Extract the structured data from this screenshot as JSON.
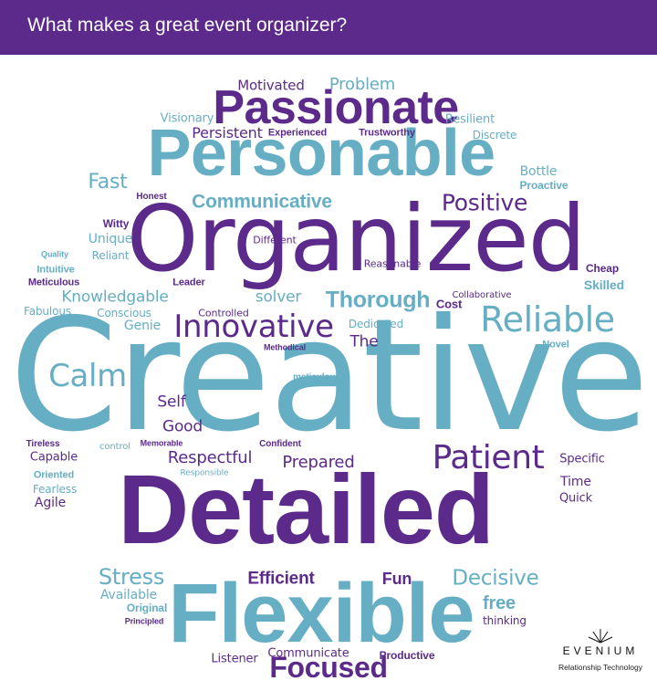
{
  "header": {
    "title": "What makes a great event organizer?",
    "background": "#5b2a8a"
  },
  "colors": {
    "purple": "#5b2a8a",
    "blue": "#66aec4"
  },
  "words": [
    {
      "text": "Creative",
      "color": "blue"
    },
    {
      "text": "Detailed",
      "color": "purple"
    },
    {
      "text": "Organized",
      "color": "purple"
    },
    {
      "text": "Flexible",
      "color": "blue"
    },
    {
      "text": "Personable",
      "color": "blue"
    },
    {
      "text": "Passionate",
      "color": "purple"
    },
    {
      "text": "Innovative",
      "color": "purple"
    },
    {
      "text": "Reliable",
      "color": "blue"
    },
    {
      "text": "Patient",
      "color": "purple"
    },
    {
      "text": "Focused",
      "color": "purple"
    },
    {
      "text": "Thorough",
      "color": "blue"
    },
    {
      "text": "Positive",
      "color": "purple"
    },
    {
      "text": "Communicative",
      "color": "blue"
    },
    {
      "text": "Calm",
      "color": "blue"
    },
    {
      "text": "Stress",
      "color": "blue"
    },
    {
      "text": "Decisive",
      "color": "blue"
    },
    {
      "text": "Efficient",
      "color": "purple"
    },
    {
      "text": "Fun",
      "color": "purple"
    },
    {
      "text": "free",
      "color": "blue"
    },
    {
      "text": "Fast",
      "color": "blue"
    },
    {
      "text": "Problem",
      "color": "blue"
    },
    {
      "text": "Knowledgable",
      "color": "blue"
    },
    {
      "text": "Respectful",
      "color": "purple"
    },
    {
      "text": "Prepared",
      "color": "purple"
    },
    {
      "text": "solver",
      "color": "blue"
    },
    {
      "text": "Self",
      "color": "purple"
    },
    {
      "text": "Good",
      "color": "purple"
    },
    {
      "text": "The",
      "color": "purple"
    },
    {
      "text": "Persistent",
      "color": "purple"
    },
    {
      "text": "Motivated",
      "color": "purple"
    },
    {
      "text": "Unique",
      "color": "blue"
    },
    {
      "text": "Agile",
      "color": "purple"
    },
    {
      "text": "Time",
      "color": "purple"
    },
    {
      "text": "Quick",
      "color": "purple"
    },
    {
      "text": "Available",
      "color": "blue"
    },
    {
      "text": "Communicate",
      "color": "purple"
    },
    {
      "text": "Listener",
      "color": "purple"
    },
    {
      "text": "Visionary",
      "color": "blue"
    },
    {
      "text": "Resilient",
      "color": "blue"
    },
    {
      "text": "Discrete",
      "color": "blue"
    },
    {
      "text": "Bottle",
      "color": "blue"
    },
    {
      "text": "Proactive",
      "color": "blue"
    },
    {
      "text": "Skilled",
      "color": "blue"
    },
    {
      "text": "Cheap",
      "color": "purple"
    },
    {
      "text": "Cost",
      "color": "purple"
    },
    {
      "text": "Experienced",
      "color": "purple"
    },
    {
      "text": "Trustworthy",
      "color": "purple"
    },
    {
      "text": "Honest",
      "color": "purple"
    },
    {
      "text": "Witty",
      "color": "purple"
    },
    {
      "text": "Reliant",
      "color": "blue"
    },
    {
      "text": "Different",
      "color": "purple"
    },
    {
      "text": "Reasonable",
      "color": "purple"
    },
    {
      "text": "Collaborative",
      "color": "purple"
    },
    {
      "text": "Leader",
      "color": "purple"
    },
    {
      "text": "Controlled",
      "color": "purple"
    },
    {
      "text": "Dedicated",
      "color": "blue"
    },
    {
      "text": "Genie",
      "color": "blue"
    },
    {
      "text": "Conscious",
      "color": "blue"
    },
    {
      "text": "Fabulous",
      "color": "blue"
    },
    {
      "text": "Quality",
      "color": "blue"
    },
    {
      "text": "Intuitive",
      "color": "blue"
    },
    {
      "text": "Meticulous",
      "color": "purple"
    },
    {
      "text": "Methodical",
      "color": "purple"
    },
    {
      "text": "Novel",
      "color": "blue"
    },
    {
      "text": "meticulous",
      "color": "blue"
    },
    {
      "text": "Tireless",
      "color": "purple"
    },
    {
      "text": "Capable",
      "color": "purple"
    },
    {
      "text": "control",
      "color": "blue"
    },
    {
      "text": "Memorable",
      "color": "purple"
    },
    {
      "text": "Confident",
      "color": "purple"
    },
    {
      "text": "Responsible",
      "color": "blue"
    },
    {
      "text": "Oriented",
      "color": "blue"
    },
    {
      "text": "Fearless",
      "color": "blue"
    },
    {
      "text": "Specific",
      "color": "purple"
    },
    {
      "text": "Original",
      "color": "blue"
    },
    {
      "text": "Principled",
      "color": "purple"
    },
    {
      "text": "thinking",
      "color": "purple"
    },
    {
      "text": "Productive",
      "color": "purple"
    }
  ],
  "logo": {
    "name": "EVENIUM",
    "tagline": "Relationship Technology"
  }
}
